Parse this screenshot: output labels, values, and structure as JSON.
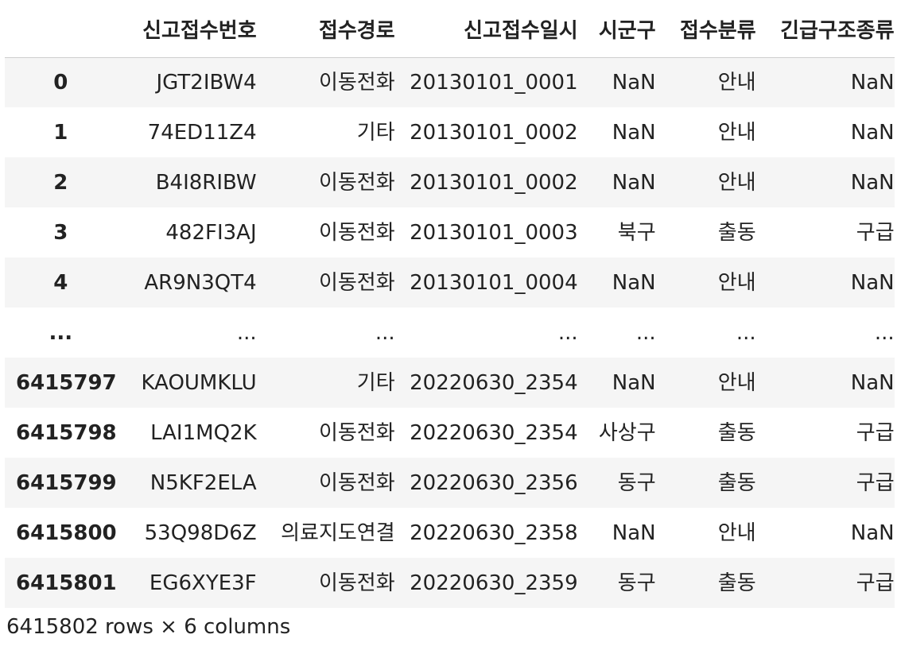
{
  "dataframe": {
    "columns": [
      "신고접수번호",
      "접수경로",
      "신고접수일시",
      "시군구",
      "접수분류",
      "긴급구조종류"
    ],
    "rows": [
      {
        "index": "0",
        "cells": [
          "JGT2IBW4",
          "이동전화",
          "20130101_0001",
          "NaN",
          "안내",
          "NaN"
        ]
      },
      {
        "index": "1",
        "cells": [
          "74ED11Z4",
          "기타",
          "20130101_0002",
          "NaN",
          "안내",
          "NaN"
        ]
      },
      {
        "index": "2",
        "cells": [
          "B4I8RIBW",
          "이동전화",
          "20130101_0002",
          "NaN",
          "안내",
          "NaN"
        ]
      },
      {
        "index": "3",
        "cells": [
          "482FI3AJ",
          "이동전화",
          "20130101_0003",
          "북구",
          "출동",
          "구급"
        ]
      },
      {
        "index": "4",
        "cells": [
          "AR9N3QT4",
          "이동전화",
          "20130101_0004",
          "NaN",
          "안내",
          "NaN"
        ]
      },
      {
        "index": "...",
        "cells": [
          "...",
          "...",
          "...",
          "...",
          "...",
          "..."
        ]
      },
      {
        "index": "6415797",
        "cells": [
          "KAOUMKLU",
          "기타",
          "20220630_2354",
          "NaN",
          "안내",
          "NaN"
        ]
      },
      {
        "index": "6415798",
        "cells": [
          "LAI1MQ2K",
          "이동전화",
          "20220630_2354",
          "사상구",
          "출동",
          "구급"
        ]
      },
      {
        "index": "6415799",
        "cells": [
          "N5KF2ELA",
          "이동전화",
          "20220630_2356",
          "동구",
          "출동",
          "구급"
        ]
      },
      {
        "index": "6415800",
        "cells": [
          "53Q98D6Z",
          "의료지도연결",
          "20220630_2358",
          "NaN",
          "안내",
          "NaN"
        ]
      },
      {
        "index": "6415801",
        "cells": [
          "EG6XYE3F",
          "이동전화",
          "20220630_2359",
          "동구",
          "출동",
          "구급"
        ]
      }
    ],
    "summary": "6415802 rows × 6 columns"
  }
}
